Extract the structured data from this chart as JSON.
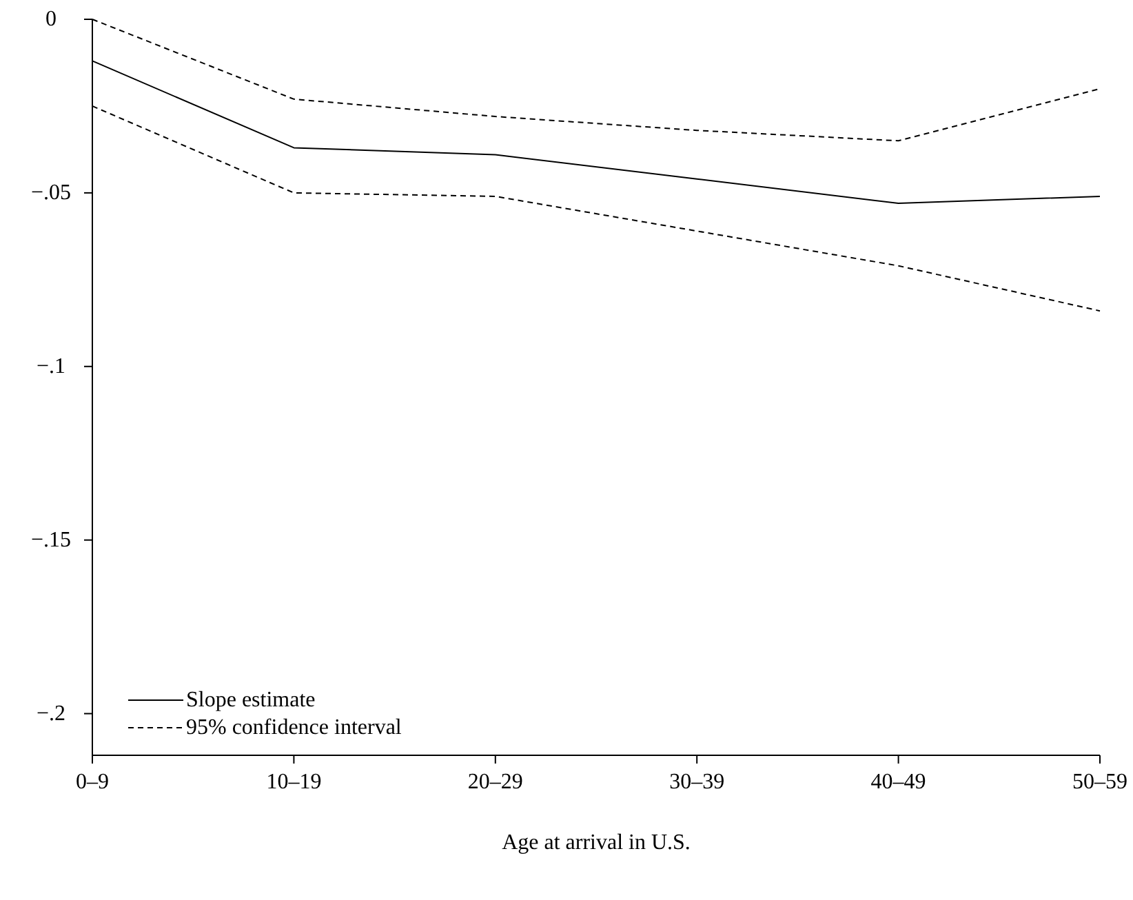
{
  "chart_data": {
    "type": "line",
    "xlabel": "Age at arrival in U.S.",
    "categories": [
      "0–9",
      "10–19",
      "20–29",
      "30–39",
      "40–49",
      "50–59"
    ],
    "series": [
      {
        "name": "Slope estimate",
        "color": "#000000",
        "line_style": "solid",
        "values": [
          -0.012,
          -0.037,
          -0.039,
          -0.046,
          -0.053,
          -0.051
        ]
      },
      {
        "name": "95% confidence interval",
        "color": "#000000",
        "line_style": "dashed",
        "values": [
          0.0,
          -0.023,
          -0.028,
          -0.032,
          -0.035,
          -0.02
        ]
      },
      {
        "color": "#000000",
        "line_style": "dashed",
        "values": [
          -0.025,
          -0.05,
          -0.051,
          -0.061,
          -0.071,
          -0.084
        ]
      }
    ],
    "ylim": [
      -0.212,
      0
    ],
    "yticks": [
      {
        "value": 0,
        "label": "0"
      },
      {
        "value": -0.05,
        "label": "−.05"
      },
      {
        "value": -0.1,
        "label": "−.1"
      },
      {
        "value": -0.15,
        "label": "−.15"
      },
      {
        "value": -0.2,
        "label": "−.2"
      }
    ],
    "grid": false,
    "legend": "bottom left"
  }
}
